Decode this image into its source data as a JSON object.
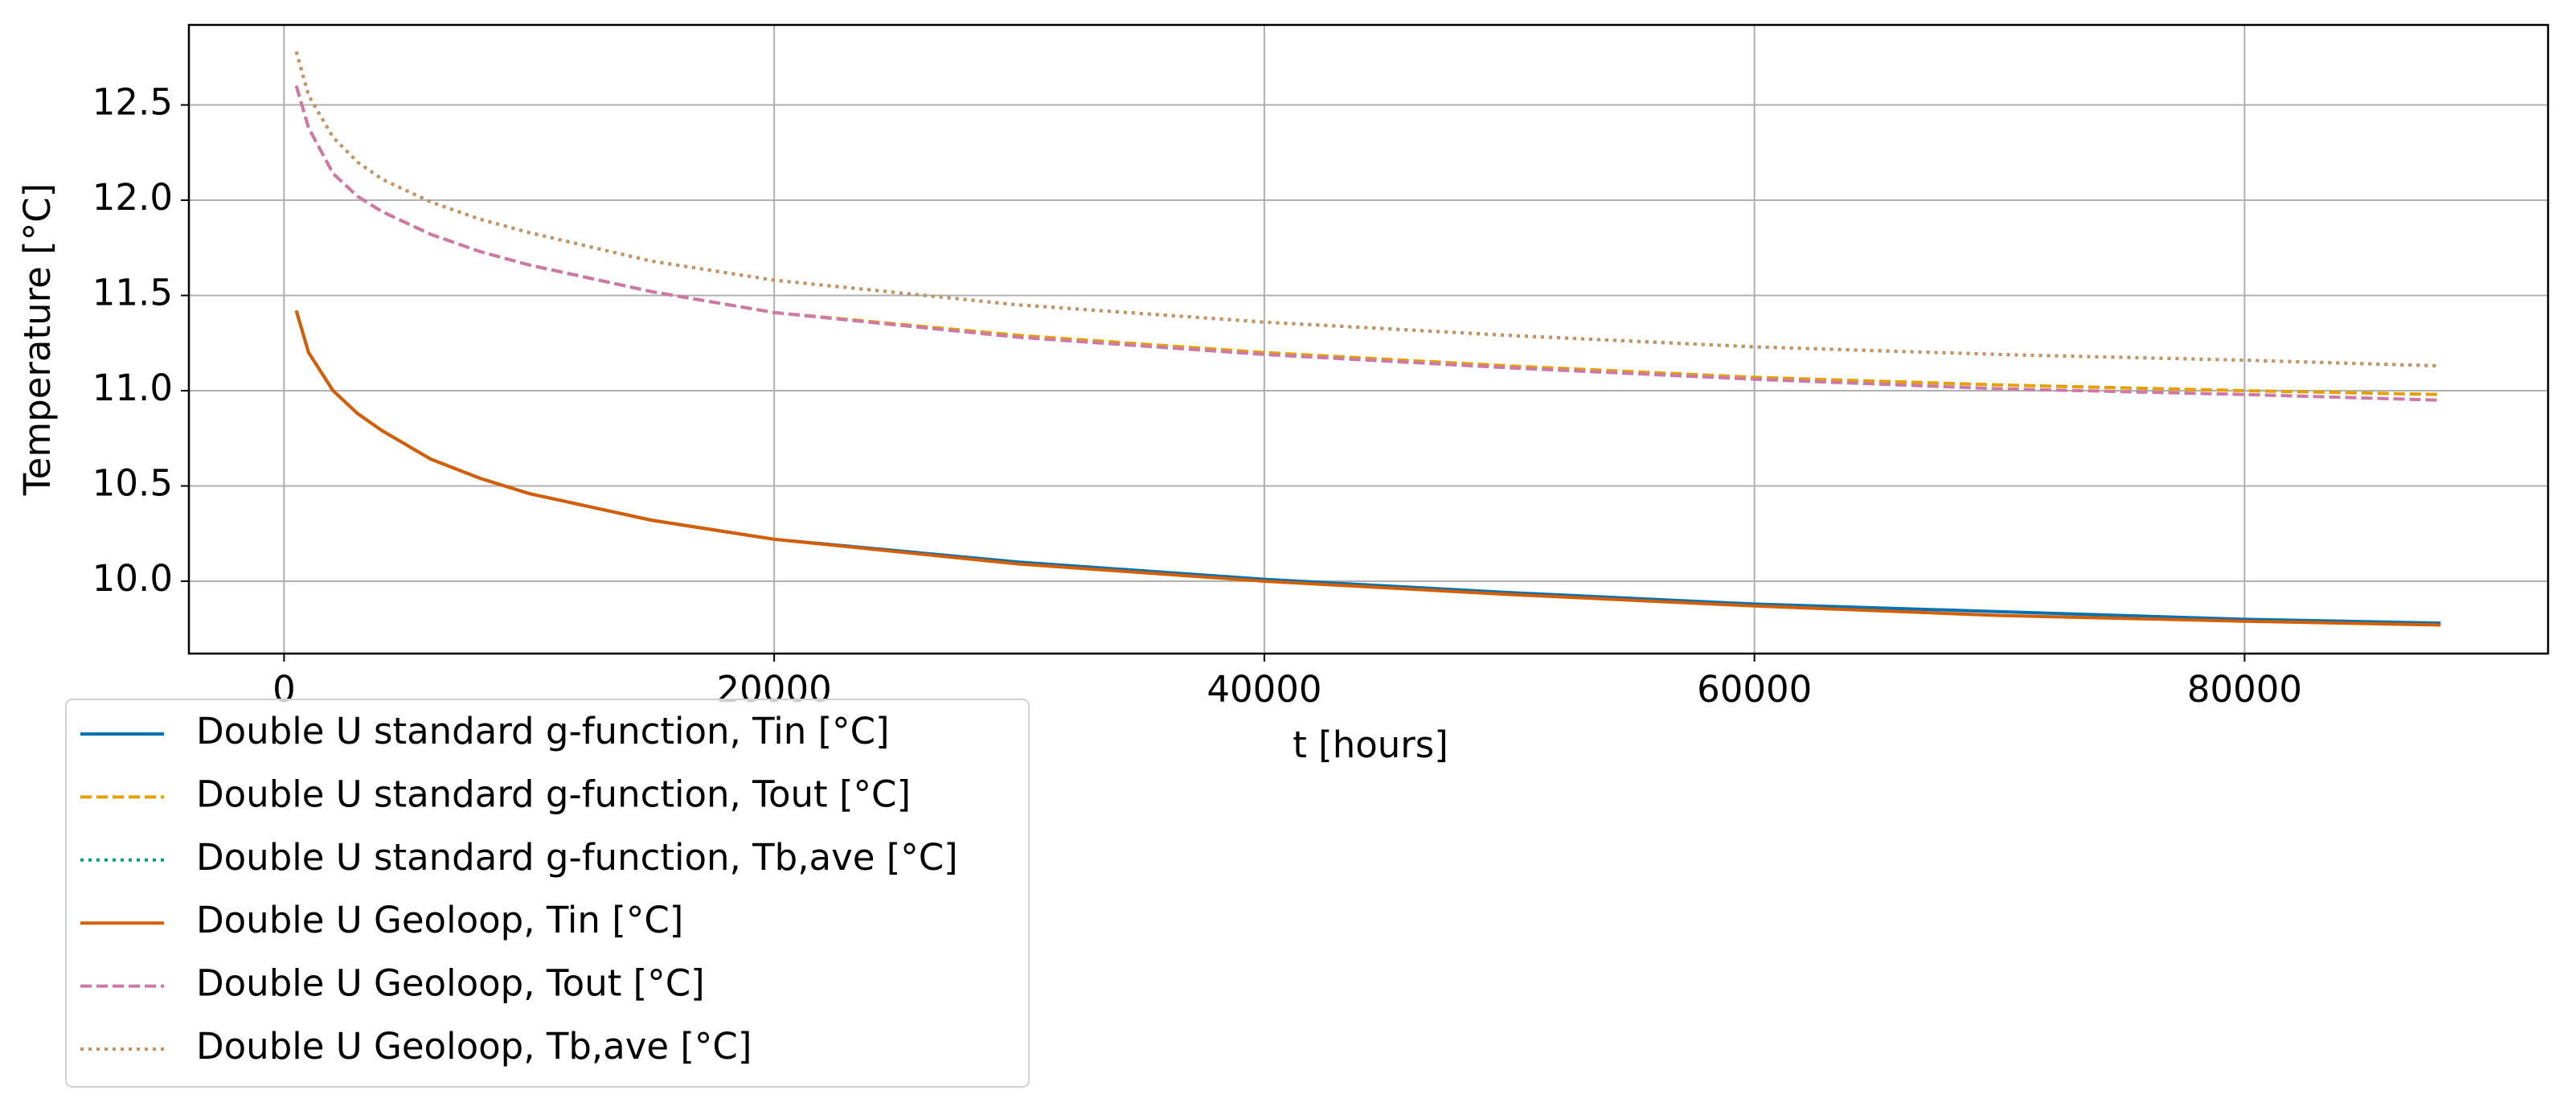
{
  "chart_data": {
    "type": "line",
    "x_label": "t [hours]",
    "y_label": "Temperature [°C]",
    "x": [
      500,
      1000,
      2000,
      3000,
      4000,
      6000,
      8000,
      10000,
      15000,
      20000,
      30000,
      40000,
      50000,
      60000,
      70000,
      80000,
      88000
    ],
    "series": [
      {
        "name": "Double U standard g-function, Tin [°C]",
        "color": "#0072b2",
        "dash": "solid",
        "values": [
          11.42,
          11.2,
          11.0,
          10.88,
          10.79,
          10.64,
          10.54,
          10.46,
          10.32,
          10.22,
          10.1,
          10.01,
          9.94,
          9.88,
          9.84,
          9.8,
          9.78
        ]
      },
      {
        "name": "Double U standard g-function, Tout [°C]",
        "color": "#e69f00",
        "dash": "dashed",
        "values": [
          12.6,
          12.38,
          12.14,
          12.02,
          11.94,
          11.82,
          11.73,
          11.66,
          11.52,
          11.41,
          11.29,
          11.2,
          11.13,
          11.07,
          11.03,
          11.0,
          10.98
        ]
      },
      {
        "name": "Double U standard g-function, Tb,ave [°C]",
        "color": "#009e73",
        "dash": "dotted",
        "values": [
          12.78,
          12.55,
          12.33,
          12.2,
          12.11,
          11.99,
          11.9,
          11.83,
          11.68,
          11.58,
          11.45,
          11.36,
          11.29,
          11.23,
          11.19,
          11.16,
          11.13
        ]
      },
      {
        "name": "Double U Geoloop, Tin [°C]",
        "color": "#d55e00",
        "dash": "solid",
        "values": [
          11.42,
          11.2,
          11.0,
          10.88,
          10.79,
          10.64,
          10.54,
          10.46,
          10.32,
          10.22,
          10.09,
          10.0,
          9.93,
          9.87,
          9.82,
          9.79,
          9.77
        ]
      },
      {
        "name": "Double U Geoloop, Tout [°C]",
        "color": "#cc79a7",
        "dash": "dashed",
        "values": [
          12.6,
          12.38,
          12.14,
          12.02,
          11.94,
          11.82,
          11.73,
          11.66,
          11.52,
          11.41,
          11.28,
          11.19,
          11.12,
          11.06,
          11.01,
          10.98,
          10.95
        ]
      },
      {
        "name": "Double U Geoloop, Tb,ave [°C]",
        "color": "#ca9161",
        "dash": "dotted",
        "values": [
          12.78,
          12.55,
          12.33,
          12.2,
          12.11,
          11.99,
          11.9,
          11.83,
          11.68,
          11.58,
          11.45,
          11.36,
          11.29,
          11.23,
          11.19,
          11.16,
          11.13
        ]
      }
    ],
    "xlim": [
      -3883,
      92385
    ],
    "xticks": [
      0,
      20000,
      40000,
      60000,
      80000
    ],
    "ylim": [
      9.62,
      12.92
    ],
    "yticks": [
      {
        "value": 10,
        "label": "10.0"
      },
      10.5,
      {
        "value": 11,
        "label": "11.0"
      },
      11.5,
      {
        "value": 12,
        "label": "12.0"
      },
      12.5
    ],
    "grid": true,
    "legend": "lower left outside"
  }
}
